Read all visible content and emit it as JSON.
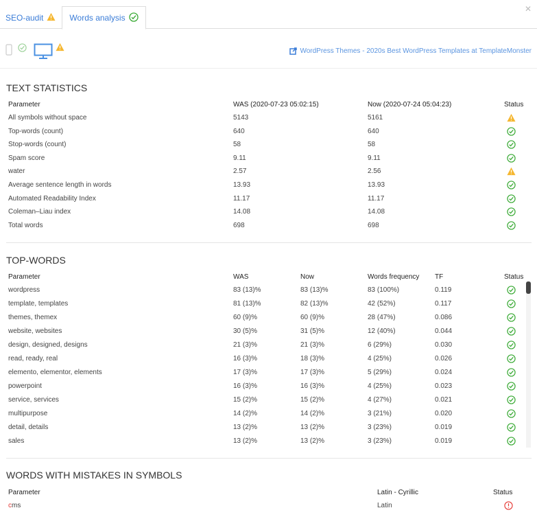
{
  "tabs": [
    {
      "label": "SEO-audit",
      "status": "warning"
    },
    {
      "label": "Words analysis",
      "status": "ok"
    }
  ],
  "toolbar": {
    "mobile_status": "ok",
    "desktop_status": "warning",
    "link_text": "WordPress Themes - 2020s Best WordPress Templates at TemplateMonster"
  },
  "text_statistics": {
    "title": "TEXT STATISTICS",
    "headers": [
      "Parameter",
      "WAS (2020-07-23 05:02:15)",
      "Now (2020-07-24 05:04:23)",
      "Status"
    ],
    "rows": [
      [
        "All symbols without space",
        "5143",
        "5161",
        "warning"
      ],
      [
        "Top-words (count)",
        "640",
        "640",
        "ok"
      ],
      [
        "Stop-words (count)",
        "58",
        "58",
        "ok"
      ],
      [
        "Spam score",
        "9.11",
        "9.11",
        "ok"
      ],
      [
        "water",
        "2.57",
        "2.56",
        "warning"
      ],
      [
        "Average sentence length in words",
        "13.93",
        "13.93",
        "ok"
      ],
      [
        "Automated Readability Index",
        "11.17",
        "11.17",
        "ok"
      ],
      [
        "Coleman–Liau index",
        "14.08",
        "14.08",
        "ok"
      ],
      [
        "Total words",
        "698",
        "698",
        "ok"
      ]
    ]
  },
  "top_words": {
    "title": "TOP-WORDS",
    "headers": [
      "Parameter",
      "WAS",
      "Now",
      "Words frequency",
      "TF",
      "Status"
    ],
    "rows": [
      [
        "wordpress",
        "83 (13)%",
        "83 (13)%",
        "83 (100%)",
        "0.119",
        "ok"
      ],
      [
        "template, templates",
        "81 (13)%",
        "82 (13)%",
        "42 (52%)",
        "0.117",
        "ok"
      ],
      [
        "themes, themex",
        "60 (9)%",
        "60 (9)%",
        "28 (47%)",
        "0.086",
        "ok"
      ],
      [
        "website, websites",
        "30 (5)%",
        "31 (5)%",
        "12 (40%)",
        "0.044",
        "ok"
      ],
      [
        "design, designed, designs",
        "21 (3)%",
        "21 (3)%",
        "6 (29%)",
        "0.030",
        "ok"
      ],
      [
        "read, ready, real",
        "16 (3)%",
        "18 (3)%",
        "4 (25%)",
        "0.026",
        "ok"
      ],
      [
        "elemento, elementor, elements",
        "17 (3)%",
        "17 (3)%",
        "5 (29%)",
        "0.024",
        "ok"
      ],
      [
        "powerpoint",
        "16 (3)%",
        "16 (3)%",
        "4 (25%)",
        "0.023",
        "ok"
      ],
      [
        "service, services",
        "15 (2)%",
        "15 (2)%",
        "4 (27%)",
        "0.021",
        "ok"
      ],
      [
        "multipurpose",
        "14 (2)%",
        "14 (2)%",
        "3 (21%)",
        "0.020",
        "ok"
      ],
      [
        "detail, details",
        "13 (2)%",
        "13 (2)%",
        "3 (23%)",
        "0.019",
        "ok"
      ],
      [
        "sales",
        "13 (2)%",
        "13 (2)%",
        "3 (23%)",
        "0.019",
        "ok"
      ]
    ]
  },
  "mistakes": {
    "title": "WORDS WITH MISTAKES IN SYMBOLS",
    "headers": [
      "Parameter",
      "Latin - Cyrillic",
      "Status"
    ],
    "rows": [
      {
        "first": "c",
        "rest": "ms",
        "alphabet": "Latin",
        "status": "error"
      }
    ]
  },
  "colors": {
    "ok": "#3aaa35",
    "warning": "#f5b731",
    "error": "#e53935",
    "link": "#3b7dd8"
  }
}
